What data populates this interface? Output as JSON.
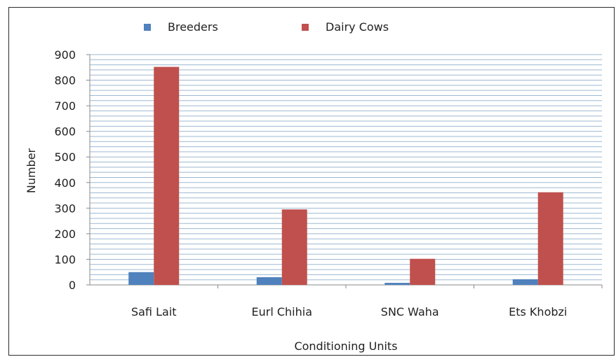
{
  "chart_data": {
    "type": "bar",
    "title": "",
    "xlabel": "Conditioning Units",
    "ylabel": "Number",
    "categories": [
      "Safi Lait",
      "Eurl Chihia",
      "SNC Waha",
      "Ets Khobzi"
    ],
    "series": [
      {
        "name": "Breeders",
        "values": [
          50,
          30,
          8,
          22
        ],
        "color": "#4f81bd"
      },
      {
        "name": "Dairy Cows",
        "values": [
          852,
          295,
          102,
          362
        ],
        "color": "#c0504d"
      }
    ],
    "ylim": [
      0,
      900
    ],
    "yticks": [
      0,
      100,
      200,
      300,
      400,
      500,
      600,
      700,
      800,
      900
    ],
    "grid": true,
    "grid_color": "#9db8d2",
    "legend_position": "top"
  }
}
